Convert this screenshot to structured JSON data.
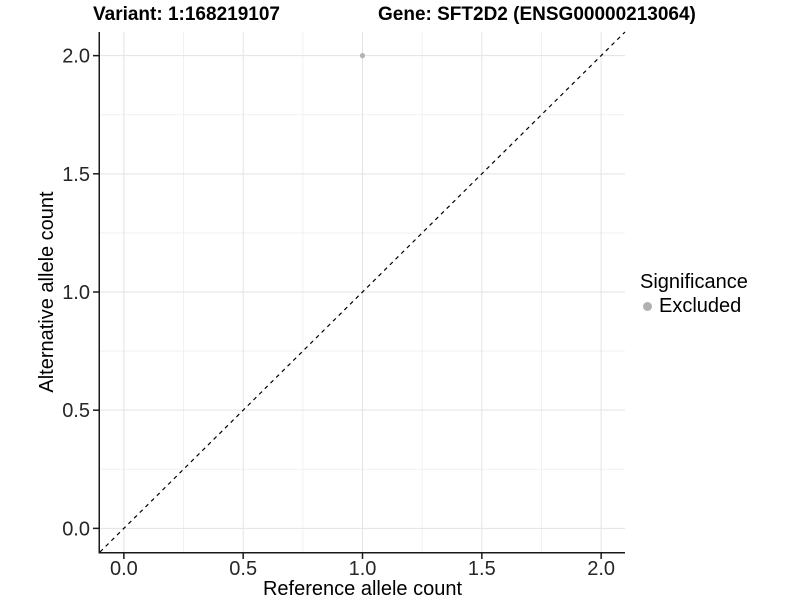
{
  "titles": {
    "variant": "Variant: 1:168219107",
    "gene": "Gene: SFT2D2 (ENSG00000213064)"
  },
  "axes": {
    "x_label": "Reference allele count",
    "y_label": "Alternative allele count"
  },
  "legend": {
    "title": "Significance",
    "items": [
      {
        "label": "Excluded",
        "color": "#b0b0b0"
      }
    ]
  },
  "chart_data": {
    "type": "scatter",
    "title": "Variant: 1:168219107   Gene: SFT2D2 (ENSG00000213064)",
    "xlabel": "Reference allele count",
    "ylabel": "Alternative allele count",
    "xlim": [
      -0.1,
      2.1
    ],
    "ylim": [
      -0.1,
      2.1
    ],
    "x_ticks": [
      0.0,
      0.5,
      1.0,
      1.5,
      2.0
    ],
    "y_ticks": [
      0.0,
      0.5,
      1.0,
      1.5,
      2.0
    ],
    "x_tick_labels": [
      "0.0",
      "0.5",
      "1.0",
      "1.5",
      "2.0"
    ],
    "y_tick_labels": [
      "0.0",
      "0.5",
      "1.0",
      "1.5",
      "2.0"
    ],
    "minor_x_ticks": [
      0.25,
      0.75,
      1.25,
      1.75
    ],
    "minor_y_ticks": [
      0.25,
      0.75,
      1.25,
      1.75
    ],
    "grid": true,
    "legend_position": "right",
    "series": [
      {
        "name": "Excluded",
        "color": "#b3b3b3",
        "points": [
          {
            "x": 1.0,
            "y": 2.0
          }
        ]
      }
    ],
    "reference_line": {
      "kind": "identity-diagonal",
      "style": "dashed",
      "color": "#000000"
    },
    "colors": {
      "grid_major": "#e3e3e3",
      "grid_minor": "#f1f1f1",
      "axis_line": "#1a1a1a",
      "tick_mark": "#1a1a1a",
      "tick_text": "#262626"
    }
  }
}
